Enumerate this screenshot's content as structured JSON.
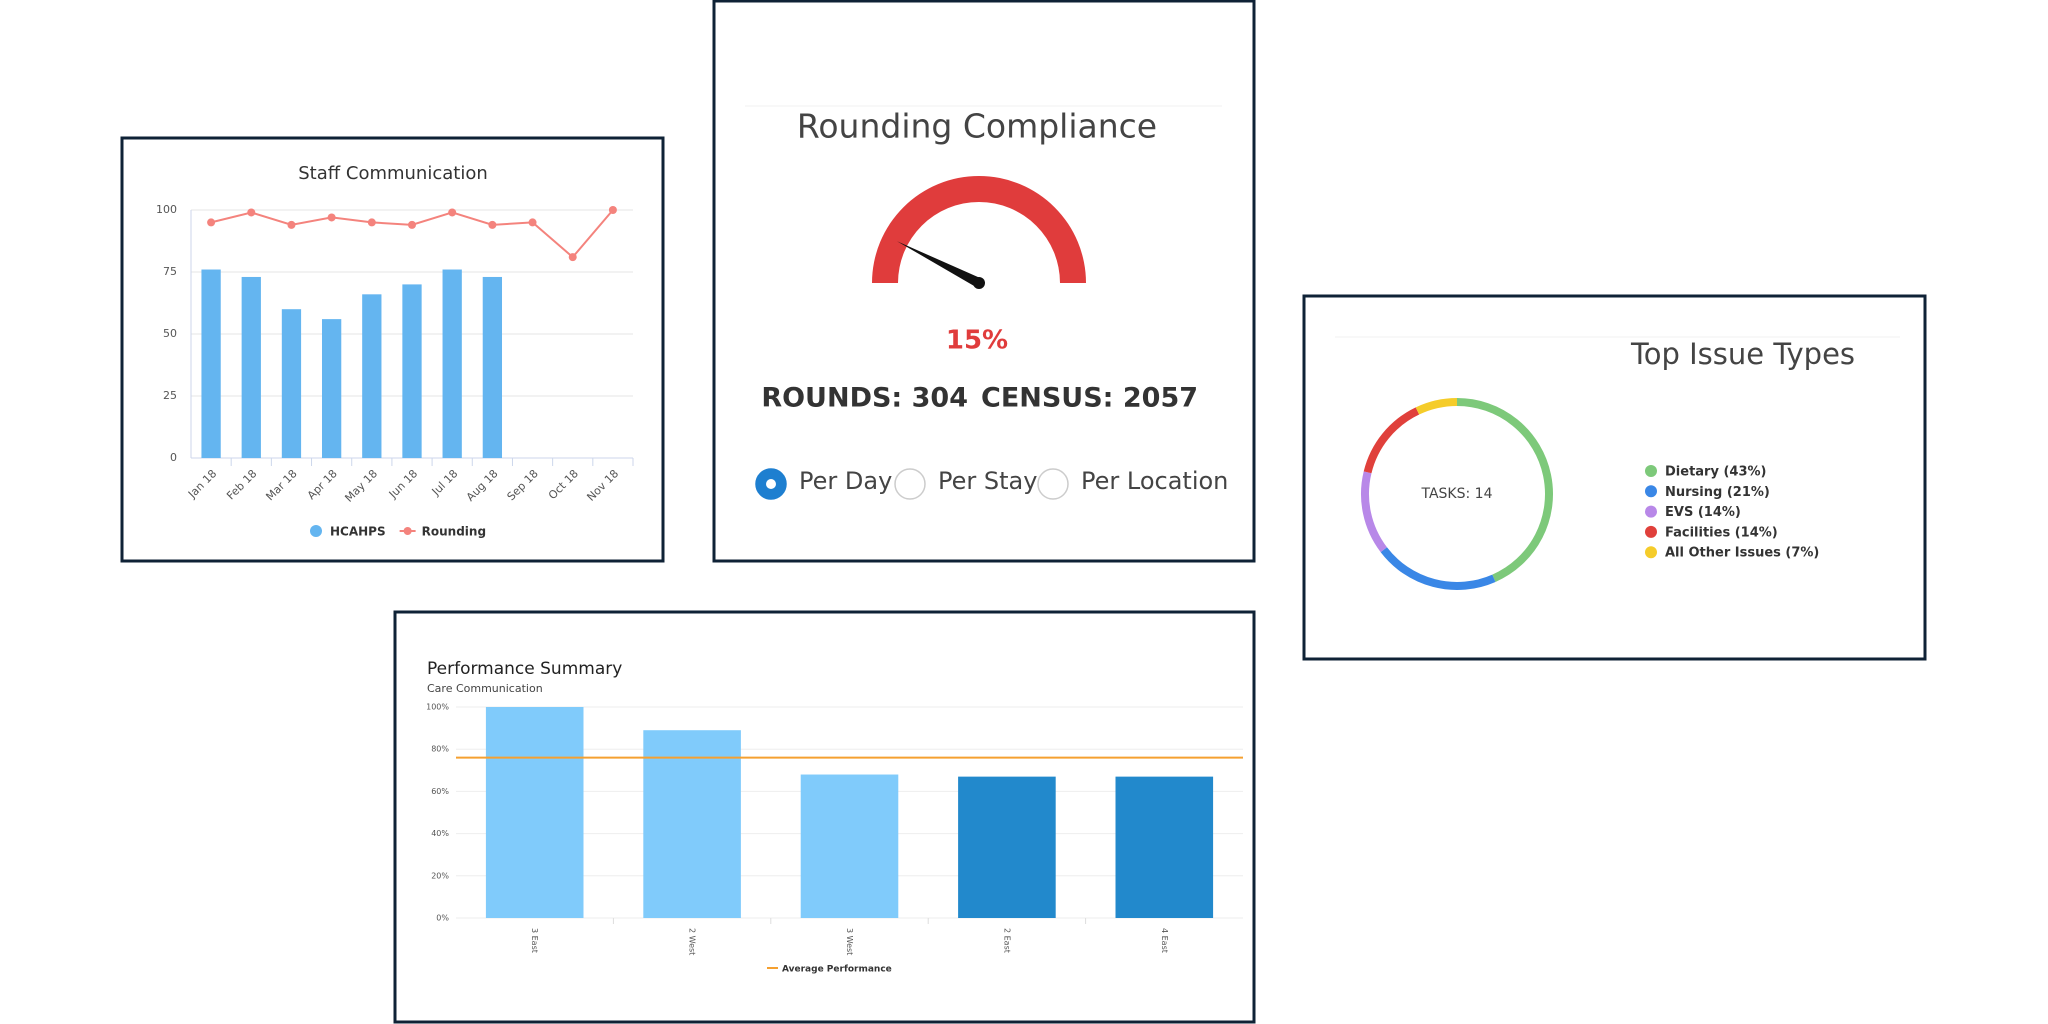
{
  "chart_data": [
    {
      "type": "combo",
      "title": "Staff Communication",
      "categories": [
        "Jan 18",
        "Feb 18",
        "Mar 18",
        "Apr 18",
        "May 18",
        "Jun 18",
        "Jul 18",
        "Aug 18",
        "Sep 18",
        "Oct 18",
        "Nov 18"
      ],
      "series": [
        {
          "name": "HCAHPS",
          "type": "bar",
          "color": "#64b5f0",
          "values": [
            76,
            73,
            60,
            56,
            66,
            70,
            76,
            73,
            null,
            null,
            null
          ]
        },
        {
          "name": "Rounding",
          "type": "line",
          "color": "#f4837d",
          "values": [
            95,
            99,
            94,
            97,
            95,
            94,
            99,
            94,
            95,
            81,
            100
          ]
        }
      ],
      "ylim": [
        0,
        100
      ],
      "yticks": [
        0,
        25,
        50,
        75,
        100
      ],
      "grid": true
    },
    {
      "type": "gauge",
      "title": "Rounding Compliance",
      "value": 15,
      "value_label": "15%",
      "ylim": [
        0,
        100
      ],
      "color": "#e03c3c",
      "stats": [
        "ROUNDS: 304",
        "CENSUS: 2057"
      ],
      "options": [
        "Per Day",
        "Per Stay",
        "Per Location"
      ],
      "selected_option": 0
    },
    {
      "type": "donut",
      "title": "Top Issue Types",
      "center_label": "TASKS: 14",
      "categories": [
        "Dietary (43%)",
        "Nursing (21%)",
        "EVS (14%)",
        "Facilities (14%)",
        "All Other Issues (7%)"
      ],
      "values": [
        43,
        21,
        14,
        14,
        7
      ],
      "colors": [
        "#7dc97a",
        "#3a87e6",
        "#b888e8",
        "#e0403b",
        "#f5cc2a"
      ]
    },
    {
      "type": "bar",
      "title": "Performance Summary",
      "subtitle": "Care Communication",
      "categories": [
        "3 East",
        "2 West",
        "3 West",
        "2 East",
        "4 East"
      ],
      "values": [
        100,
        89,
        68,
        67,
        67
      ],
      "colors": [
        "#80cbfb",
        "#80cbfb",
        "#80cbfb",
        "#2289cc",
        "#2289cc"
      ],
      "reference_line": {
        "name": "Average Performance",
        "value": 76,
        "color": "#f5a030"
      },
      "ylim": [
        0,
        100
      ],
      "yticks": [
        {
          "value": 0,
          "label": "0%"
        },
        {
          "value": 20,
          "label": "20%"
        },
        {
          "value": 40,
          "label": "40%"
        },
        {
          "value": 60,
          "label": "60%"
        },
        {
          "value": 80,
          "label": "80%"
        },
        {
          "value": 100,
          "label": "100%"
        }
      ],
      "grid": true
    }
  ]
}
